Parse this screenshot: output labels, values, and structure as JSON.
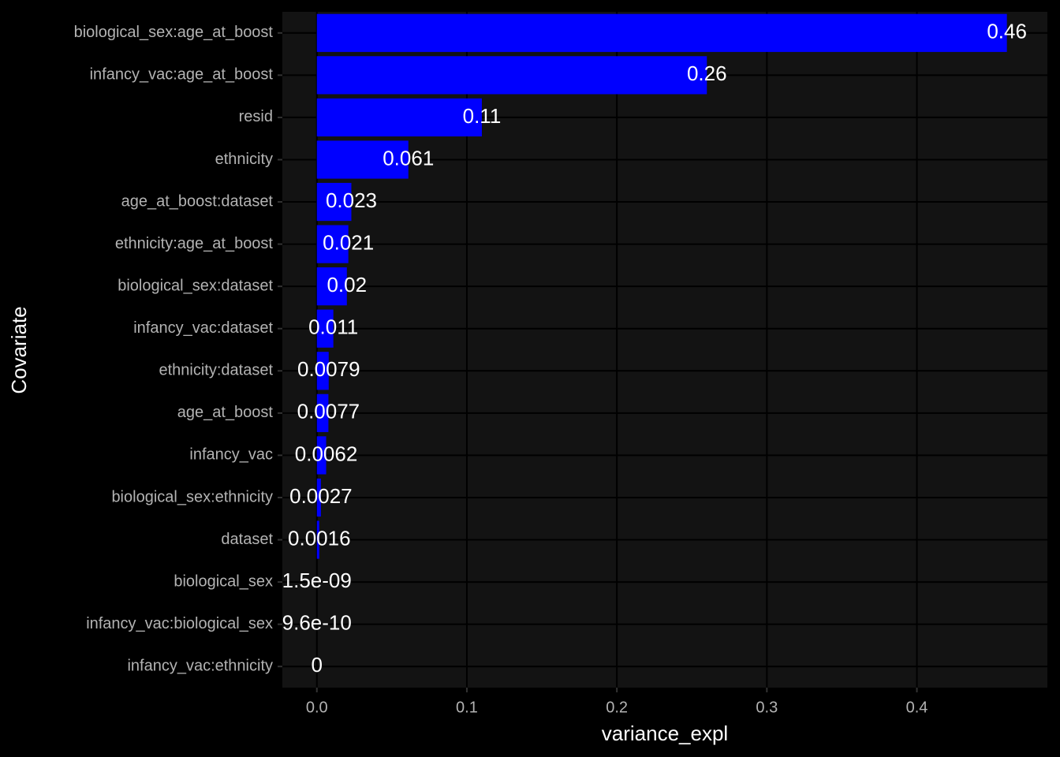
{
  "chart_data": {
    "type": "bar",
    "orientation": "horizontal",
    "x_label": "variance_expl",
    "y_label": "Covariate",
    "categories": [
      "biological_sex:age_at_boost",
      "infancy_vac:age_at_boost",
      "resid",
      "ethnicity",
      "age_at_boost:dataset",
      "ethnicity:age_at_boost",
      "biological_sex:dataset",
      "infancy_vac:dataset",
      "ethnicity:dataset",
      "age_at_boost",
      "infancy_vac",
      "biological_sex:ethnicity",
      "dataset",
      "biological_sex",
      "infancy_vac:biological_sex",
      "infancy_vac:ethnicity"
    ],
    "values": [
      0.46,
      0.26,
      0.11,
      0.061,
      0.023,
      0.021,
      0.02,
      0.011,
      0.0079,
      0.0077,
      0.0062,
      0.0027,
      0.0016,
      1.5e-09,
      9.6e-10,
      0
    ],
    "value_labels": [
      "0.46",
      "0.26",
      "0.11",
      "0.061",
      "0.023",
      "0.021",
      "0.02",
      "0.011",
      "0.0079",
      "0.0077",
      "0.0062",
      "0.0027",
      "0.0016",
      "1.5e-09",
      "9.6e-10",
      "0"
    ],
    "color": "#0000ff",
    "xlim": [
      -0.023,
      0.487
    ],
    "xticks": [
      {
        "value": 0,
        "label": "0.0"
      },
      0.1,
      0.2,
      0.3,
      0.4
    ],
    "grid": true
  }
}
